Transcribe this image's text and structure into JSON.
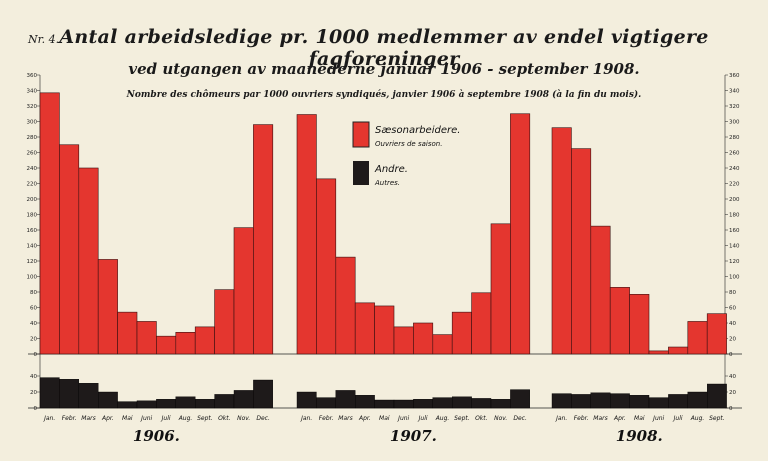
{
  "header": {
    "plate_number": "Nr. 4.",
    "title": "Antal arbeidsledige pr. 1000 medlemmer av endel vigtigere fagforeninger",
    "subtitle": "ved utgangen av maanederne januar 1906 - september 1908.",
    "subtitle_fr": "Nombre des chômeurs par 1000 ouvriers syndiqués, janvier 1906 à septembre 1908 (à la fin du mois)."
  },
  "colors": {
    "seasonal": "#e4362f",
    "other": "#1e1a1a",
    "background": "#f3eedd"
  },
  "chart_data": {
    "type": "bar",
    "title": "Antal arbeidsledige pr. 1000 medlemmer av endel vigtigere fagforeninger",
    "upper_ylim": [
      0,
      360
    ],
    "upper_ticks": [
      0,
      20,
      40,
      60,
      80,
      100,
      120,
      140,
      160,
      180,
      200,
      220,
      240,
      260,
      280,
      300,
      320,
      340,
      360
    ],
    "lower_ylim": [
      0,
      50
    ],
    "lower_ticks": [
      0,
      20,
      40
    ],
    "grid": false,
    "legend_placement": "top-center",
    "legend": [
      {
        "key": "seasonal",
        "label": "Sæsonarbeidere.",
        "label_fr": "Ouvriers de saison."
      },
      {
        "key": "other",
        "label": "Andre.",
        "label_fr": "Autres."
      }
    ],
    "years": [
      {
        "year": "1906.",
        "months": [
          "Jan.",
          "Febr.",
          "Mars",
          "Apr.",
          "Mai",
          "Juni",
          "Juli",
          "Aug.",
          "Sept.",
          "Okt.",
          "Nov.",
          "Dec."
        ],
        "seasonal": [
          337,
          270,
          240,
          122,
          54,
          42,
          23,
          28,
          35,
          83,
          163,
          296
        ],
        "other": [
          38,
          36,
          31,
          20,
          8,
          9,
          11,
          14,
          11,
          17,
          22,
          35
        ]
      },
      {
        "year": "1907.",
        "months": [
          "Jan.",
          "Febr.",
          "Mars",
          "Apr.",
          "Mai",
          "Juni",
          "Juli",
          "Aug.",
          "Sept.",
          "Okt.",
          "Nov.",
          "Dec."
        ],
        "seasonal": [
          309,
          226,
          125,
          66,
          62,
          35,
          40,
          25,
          54,
          79,
          168,
          310
        ],
        "other": [
          20,
          13,
          22,
          16,
          10,
          10,
          11,
          13,
          14,
          12,
          11,
          23
        ]
      },
      {
        "year": "1908.",
        "months": [
          "Jan.",
          "Febr.",
          "Mars",
          "Apr.",
          "Mai",
          "Juni",
          "Juli",
          "Aug.",
          "Sept."
        ],
        "seasonal": [
          292,
          265,
          165,
          86,
          77,
          4,
          9,
          42,
          52
        ],
        "other": [
          18,
          17,
          19,
          18,
          16,
          13,
          17,
          20,
          30
        ]
      }
    ]
  }
}
